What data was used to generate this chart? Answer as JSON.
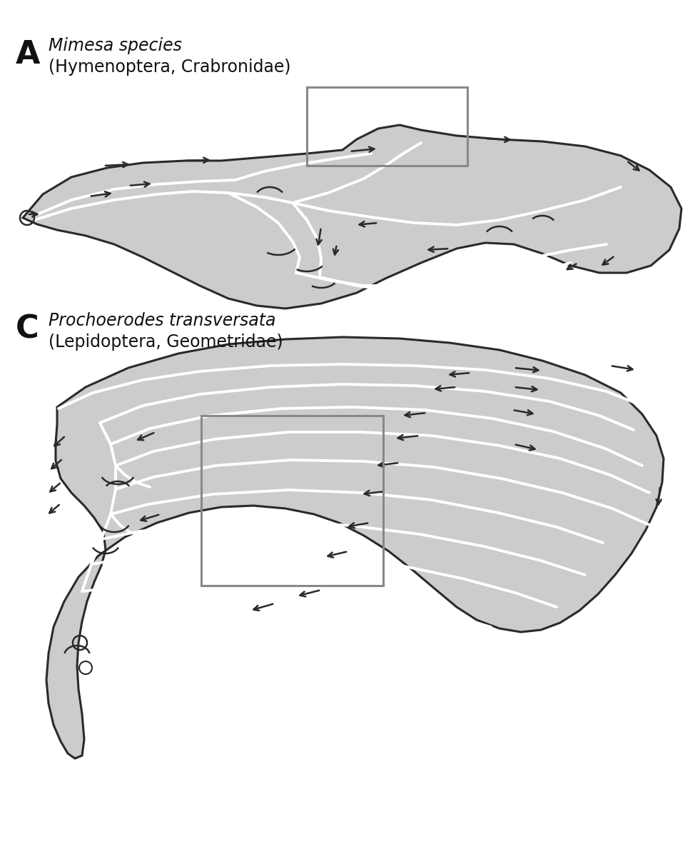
{
  "wing_fill_color": "#cccccc",
  "wing_edge_color": "#2a2a2a",
  "vein_color": "#ffffff",
  "arrow_color": "#2a2a2a",
  "box_color": "#888888",
  "background_color": "#ffffff",
  "label_A": "A",
  "label_C": "C",
  "title_A_line1": "Mimesa species",
  "title_A_line2": "(Hymenoptera, Crabronidae)",
  "title_C_line1": "Prochoerodes transversata",
  "title_C_line2": "(Lepidoptera, Geometridae)",
  "lw_wing": 2.2,
  "lw_vein": 2.8,
  "lw_arrow": 1.8,
  "arrow_scale": 13
}
